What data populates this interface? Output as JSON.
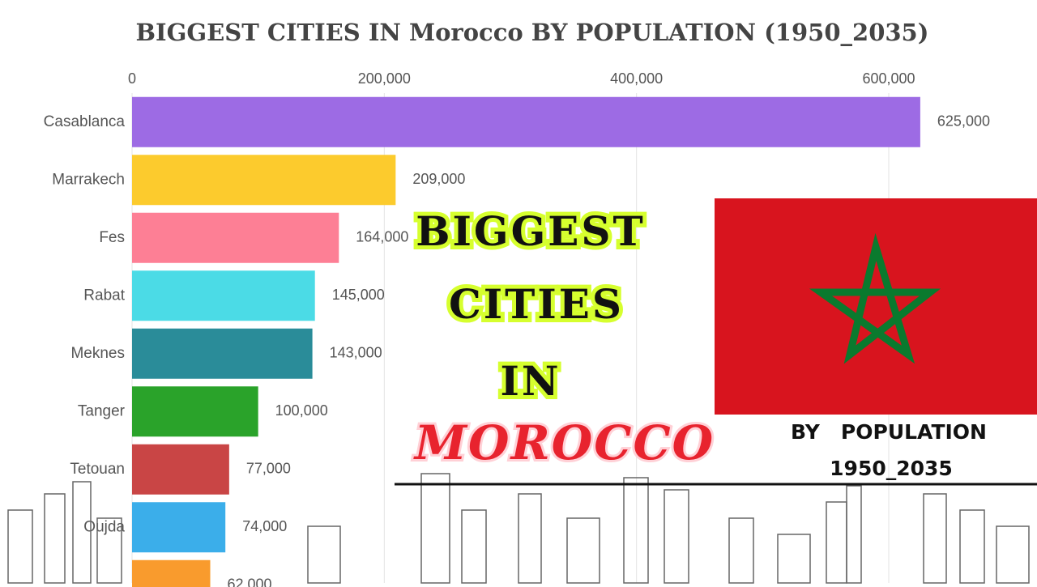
{
  "chart_data": {
    "type": "bar",
    "orientation": "horizontal",
    "title": "BIGGEST CITIES IN Morocco BY POPULATION (1950_2035)",
    "categories": [
      "Casablanca",
      "Marrakech",
      "Fes",
      "Rabat",
      "Meknes",
      "Tanger",
      "Tetouan",
      "Oujda",
      null
    ],
    "values": [
      625000,
      209000,
      164000,
      145000,
      143000,
      100000,
      77000,
      74000,
      62000
    ],
    "value_labels": [
      "625,000",
      "209,000",
      "164,000",
      "145,000",
      "143,000",
      "100,000",
      "77,000",
      "74,000",
      "62,000"
    ],
    "colors": [
      "#9d6be4",
      "#fccb2d",
      "#fd7f95",
      "#4bdbe6",
      "#2a8c99",
      "#2aa32a",
      "#c94545",
      "#3baeea",
      "#f99b2d"
    ],
    "xlim": [
      0,
      640000
    ],
    "xticks": [
      0,
      {
        "value": 200000,
        "label": "200,000"
      },
      {
        "value": 400000,
        "label": "400,000"
      },
      {
        "value": 600000,
        "label": "600,000"
      }
    ],
    "grid": true
  },
  "overlay": {
    "line1": "BIGGEST",
    "line2": "CITIES",
    "line3": "IN",
    "line4": "MOROCCO",
    "sub1": "BY   POPULATION",
    "sub2": "1950_2035"
  }
}
